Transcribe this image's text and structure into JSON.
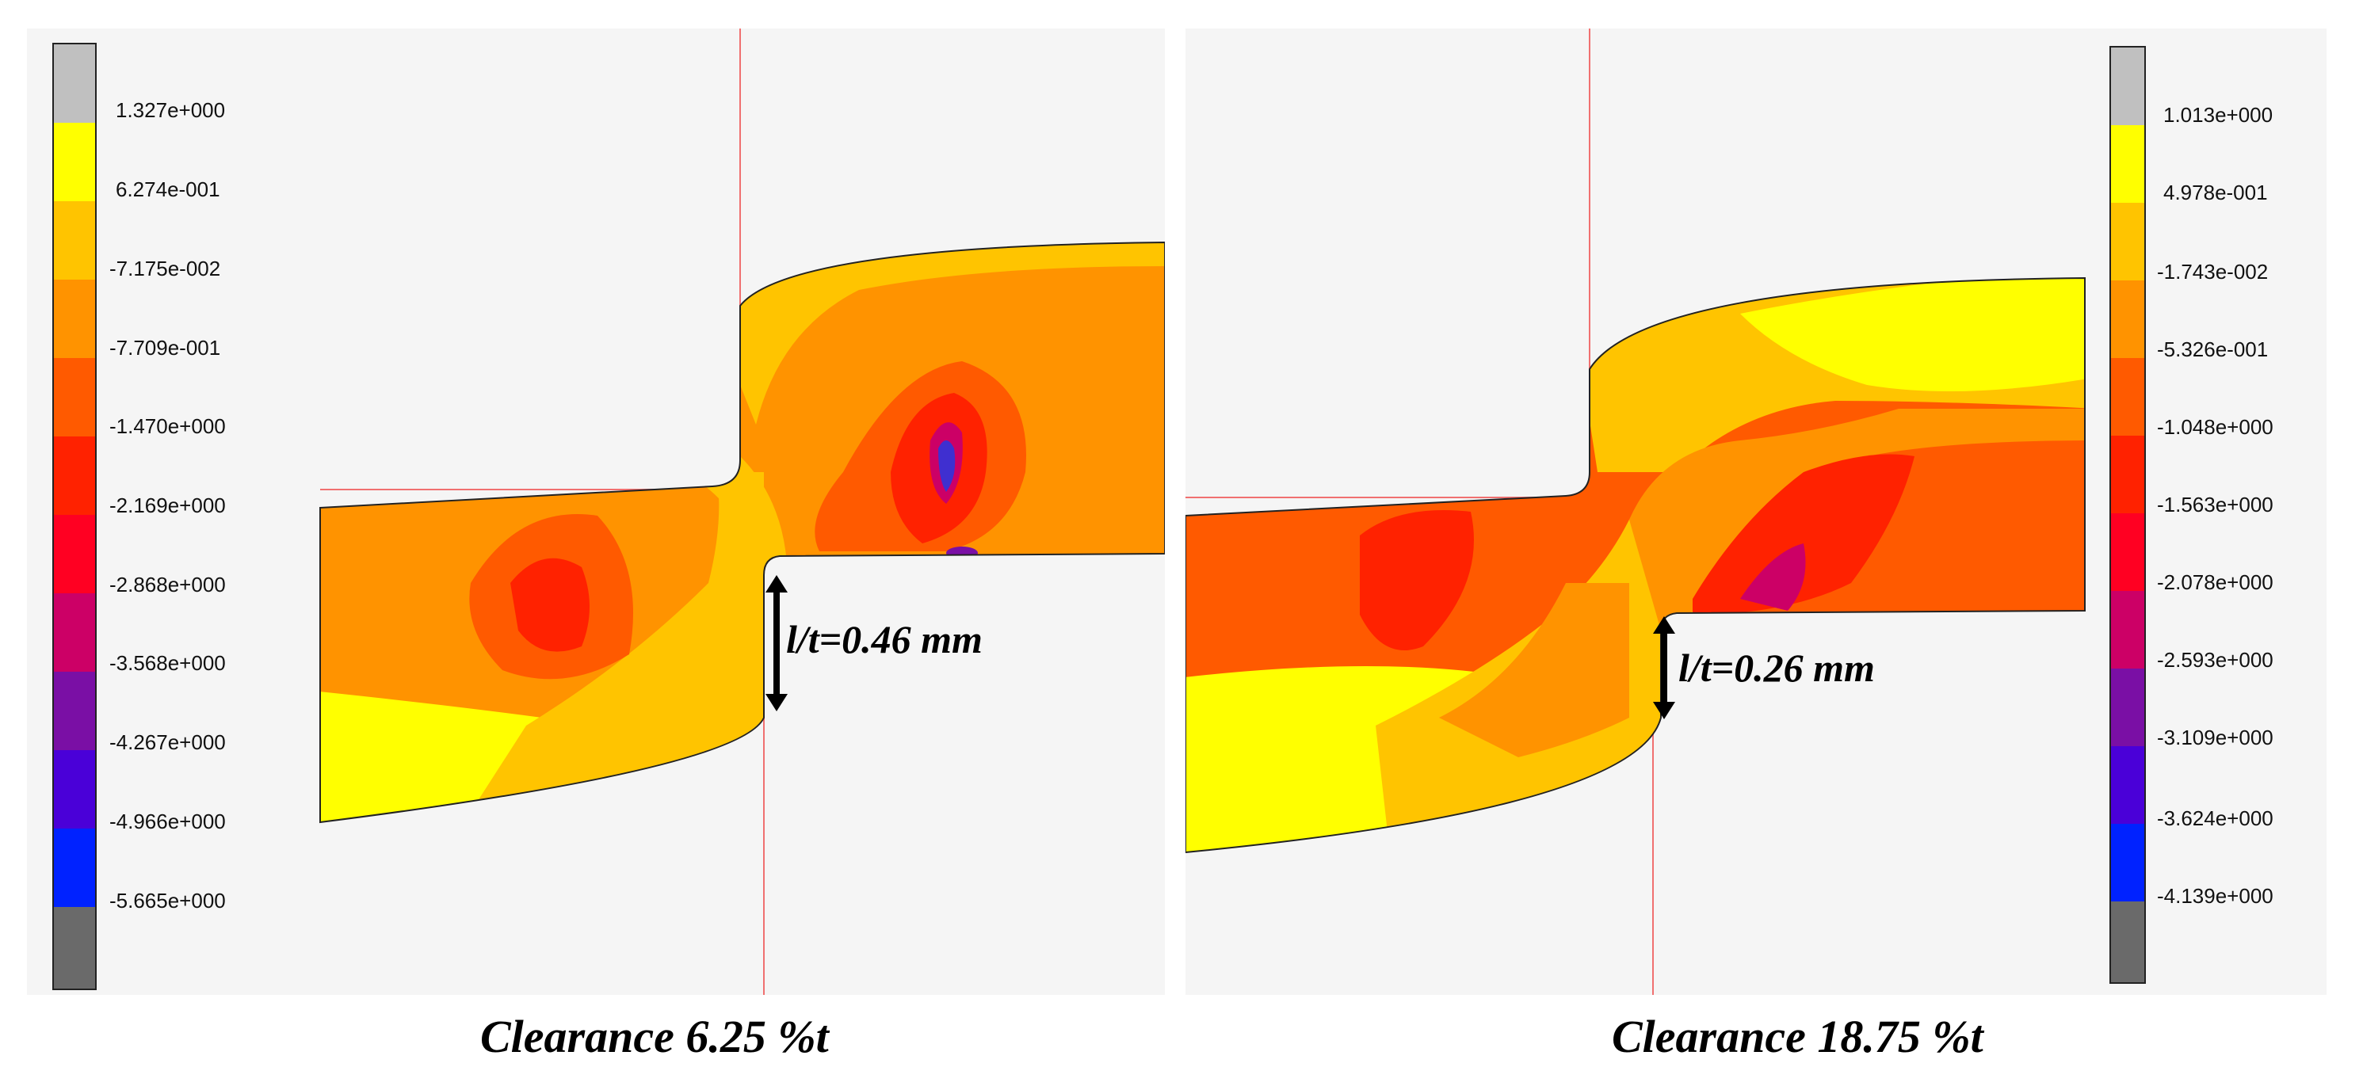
{
  "left": {
    "caption": "Clearance 6.25 %t",
    "measurement": "l/t=0.46 mm",
    "legend_labels": [
      "1.327e+000",
      "6.274e-001",
      "-7.175e-002",
      "-7.709e-001",
      "-1.470e+000",
      "-2.169e+000",
      "-2.868e+000",
      "-3.568e+000",
      "-4.267e+000",
      "-4.966e+000",
      "-5.665e+000"
    ]
  },
  "right": {
    "caption": "Clearance 18.75 %t",
    "measurement": "l/t=0.26 mm",
    "legend_labels": [
      "1.013e+000",
      "4.978e-001",
      "-1.743e-002",
      "-5.326e-001",
      "-1.048e+000",
      "-1.563e+000",
      "-2.078e+000",
      "-2.593e+000",
      "-3.109e+000",
      "-3.624e+000",
      "-4.139e+000"
    ]
  },
  "colors": {
    "legend_scale": [
      "#c0c0c0",
      "#ffff00",
      "#ffc400",
      "#ff9300",
      "#ff5a00",
      "#ff2200",
      "#ff0022",
      "#cc0066",
      "#7a0fa5",
      "#4a00d8",
      "#0022ff",
      "#6a6a6a"
    ],
    "guide_line": "#f07070",
    "panel_bg": "#f5f5f5"
  }
}
